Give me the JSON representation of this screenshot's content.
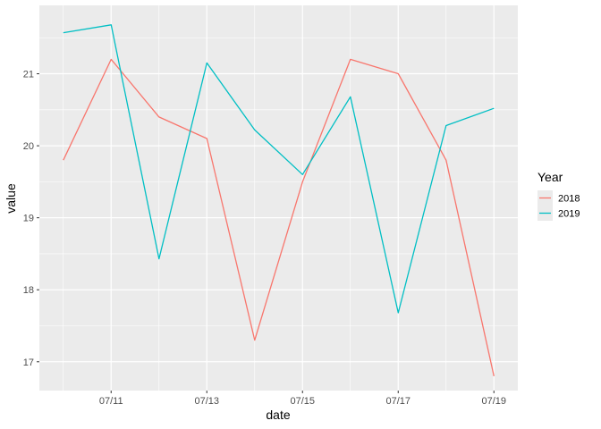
{
  "chart_data": {
    "type": "line",
    "xlabel": "date",
    "ylabel": "value",
    "x": [
      "07/10",
      "07/11",
      "07/12",
      "07/13",
      "07/14",
      "07/15",
      "07/16",
      "07/17",
      "07/18",
      "07/19"
    ],
    "x_ticks": [
      "07/11",
      "07/13",
      "07/15",
      "07/17",
      "07/19"
    ],
    "y_ticks": [
      17,
      18,
      19,
      20,
      21
    ],
    "ylim": [
      16.6,
      21.95
    ],
    "grid": true,
    "legend": {
      "title": "Year",
      "position": "right"
    },
    "series": [
      {
        "name": "2018",
        "color": "#F8766D",
        "values": [
          19.8,
          21.2,
          20.4,
          20.1,
          17.3,
          19.5,
          21.2,
          21.0,
          19.8,
          16.8
        ]
      },
      {
        "name": "2019",
        "color": "#00BFC4",
        "values": [
          21.57,
          21.68,
          18.43,
          21.15,
          20.22,
          19.6,
          20.68,
          17.68,
          20.28,
          20.52
        ]
      }
    ]
  }
}
